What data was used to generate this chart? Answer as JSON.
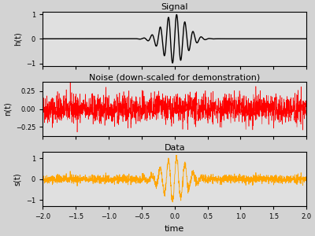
{
  "title1": "Signal",
  "title2": "Noise (down-scaled for demonstration)",
  "title3": "Data",
  "xlabel": "time",
  "ylabel1": "h(t)",
  "ylabel2": "n(t)",
  "ylabel3": "s(t)",
  "xlim": [
    -2.0,
    2.0
  ],
  "ylim1": [
    -1.1,
    1.1
  ],
  "ylim2": [
    -0.38,
    0.38
  ],
  "ylim3": [
    -1.3,
    1.3
  ],
  "t_start": -2.0,
  "t_end": 2.0,
  "n_samples": 2000,
  "signal_color": "black",
  "noise_color": "red",
  "data_color": "orange",
  "noise_scale": 0.1,
  "gaussian_sigma": 0.18,
  "carrier_freq": 8.0,
  "background_color": "#d3d3d3",
  "axes_background": "#e0e0e0",
  "noise_seed": 42,
  "linewidth_signal": 1.0,
  "linewidth_noise": 0.4,
  "linewidth_data": 0.6,
  "yticks1": [
    -1,
    0,
    1
  ],
  "yticks2": [
    -0.25,
    0.0,
    0.25
  ],
  "yticks3": [
    -1,
    0,
    1
  ],
  "xticks": [
    -2.0,
    -1.5,
    -1.0,
    -0.5,
    0.0,
    0.5,
    1.0,
    1.5,
    2.0
  ]
}
